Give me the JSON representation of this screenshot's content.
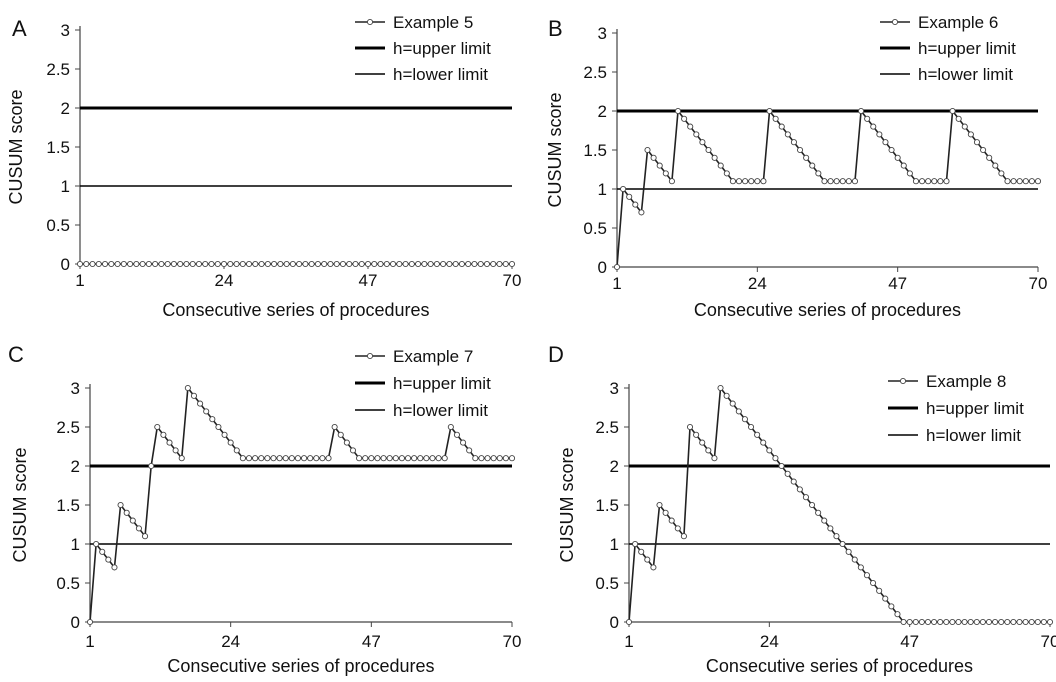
{
  "figure": {
    "ylabel": "CUSUM score",
    "xlabel": "Consecutive series of procedures",
    "xticks": [
      1,
      24,
      47,
      70
    ],
    "yticks": [
      "0",
      "0.5",
      "1",
      "1.5",
      "2",
      "2.5",
      "3"
    ],
    "legend": {
      "upper": "h=upper limit",
      "lower": "h=lower limit"
    }
  },
  "chart_data": [
    {
      "panel": "A",
      "type": "line",
      "series": [
        {
          "name": "Example 5",
          "x_range": [
            1,
            70
          ],
          "values": [
            0,
            0,
            0,
            0,
            0,
            0,
            0,
            0,
            0,
            0,
            0,
            0,
            0,
            0,
            0,
            0,
            0,
            0,
            0,
            0,
            0,
            0,
            0,
            0,
            0,
            0,
            0,
            0,
            0,
            0,
            0,
            0,
            0,
            0,
            0,
            0,
            0,
            0,
            0,
            0,
            0,
            0,
            0,
            0,
            0,
            0,
            0,
            0,
            0,
            0,
            0,
            0,
            0,
            0,
            0,
            0,
            0,
            0,
            0,
            0,
            0,
            0,
            0,
            0,
            0,
            0,
            0,
            0,
            0,
            0
          ]
        },
        {
          "name": "h=upper limit",
          "value": 2
        },
        {
          "name": "h=lower limit",
          "value": 1
        }
      ],
      "xlim": [
        1,
        70
      ],
      "ylim": [
        0,
        3
      ],
      "grid": false,
      "legend": "top-right"
    },
    {
      "panel": "B",
      "type": "line",
      "series": [
        {
          "name": "Example 6",
          "x_range": [
            1,
            70
          ],
          "values": [
            0,
            1,
            0.9,
            0.8,
            0.7,
            1.5,
            1.4,
            1.3,
            1.2,
            1.1,
            2,
            1.9,
            1.8,
            1.7,
            1.6,
            1.5,
            1.4,
            1.3,
            1.2,
            1.1,
            1.1,
            1.1,
            1.1,
            1.1,
            1.1,
            2,
            1.9,
            1.8,
            1.7,
            1.6,
            1.5,
            1.4,
            1.3,
            1.2,
            1.1,
            1.1,
            1.1,
            1.1,
            1.1,
            1.1,
            2,
            1.9,
            1.8,
            1.7,
            1.6,
            1.5,
            1.4,
            1.3,
            1.2,
            1.1,
            1.1,
            1.1,
            1.1,
            1.1,
            1.1,
            2,
            1.9,
            1.8,
            1.7,
            1.6,
            1.5,
            1.4,
            1.3,
            1.2,
            1.1,
            1.1,
            1.1,
            1.1,
            1.1,
            1.1
          ]
        },
        {
          "name": "h=upper limit",
          "value": 2
        },
        {
          "name": "h=lower limit",
          "value": 1
        }
      ],
      "xlim": [
        1,
        70
      ],
      "ylim": [
        0,
        3
      ],
      "grid": false,
      "legend": "top-right"
    },
    {
      "panel": "C",
      "type": "line",
      "series": [
        {
          "name": "Example 7",
          "x_range": [
            1,
            70
          ],
          "values": [
            0,
            1,
            0.9,
            0.8,
            0.7,
            1.5,
            1.4,
            1.3,
            1.2,
            1.1,
            2,
            2.5,
            2.4,
            2.3,
            2.2,
            2.1,
            3,
            2.9,
            2.8,
            2.7,
            2.6,
            2.5,
            2.4,
            2.3,
            2.2,
            2.1,
            2.1,
            2.1,
            2.1,
            2.1,
            2.1,
            2.1,
            2.1,
            2.1,
            2.1,
            2.1,
            2.1,
            2.1,
            2.1,
            2.1,
            2.5,
            2.4,
            2.3,
            2.2,
            2.1,
            2.1,
            2.1,
            2.1,
            2.1,
            2.1,
            2.1,
            2.1,
            2.1,
            2.1,
            2.1,
            2.1,
            2.1,
            2.1,
            2.1,
            2.5,
            2.4,
            2.3,
            2.2,
            2.1,
            2.1,
            2.1,
            2.1,
            2.1,
            2.1,
            2.1
          ]
        },
        {
          "name": "h=upper limit",
          "value": 2
        },
        {
          "name": "h=lower limit",
          "value": 1
        }
      ],
      "xlim": [
        1,
        70
      ],
      "ylim": [
        0,
        3
      ],
      "grid": false,
      "legend": "top-right"
    },
    {
      "panel": "D",
      "type": "line",
      "series": [
        {
          "name": "Example 8",
          "x_range": [
            1,
            70
          ],
          "values": [
            0,
            1,
            0.9,
            0.8,
            0.7,
            1.5,
            1.4,
            1.3,
            1.2,
            1.1,
            2.5,
            2.4,
            2.3,
            2.2,
            2.1,
            3,
            2.9,
            2.8,
            2.7,
            2.6,
            2.5,
            2.4,
            2.3,
            2.2,
            2.1,
            2,
            1.9,
            1.8,
            1.7,
            1.6,
            1.5,
            1.4,
            1.3,
            1.2,
            1.1,
            1,
            0.9,
            0.8,
            0.7,
            0.6,
            0.5,
            0.4,
            0.3,
            0.2,
            0.1,
            0,
            0,
            0,
            0,
            0,
            0,
            0,
            0,
            0,
            0,
            0,
            0,
            0,
            0,
            0,
            0,
            0,
            0,
            0,
            0,
            0,
            0,
            0,
            0,
            0
          ]
        },
        {
          "name": "h=upper limit",
          "value": 2
        },
        {
          "name": "h=lower limit",
          "value": 1
        }
      ],
      "xlim": [
        1,
        70
      ],
      "ylim": [
        0,
        3
      ],
      "grid": false,
      "legend": "top-right"
    }
  ]
}
